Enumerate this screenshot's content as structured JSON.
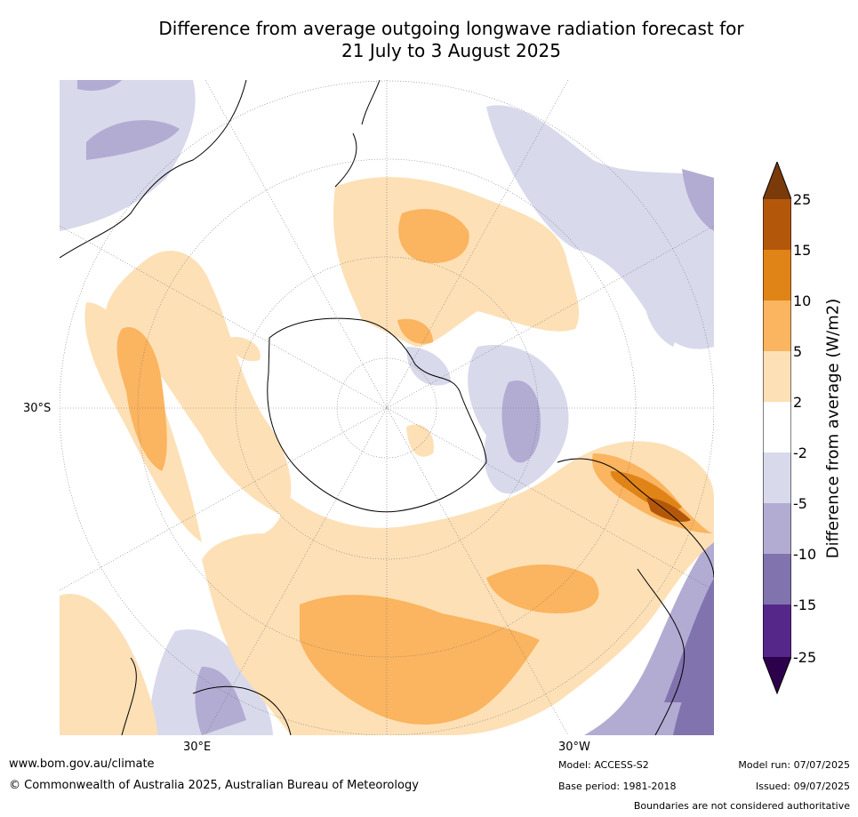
{
  "title_line1": "Difference from average outgoing longwave radiation forecast for",
  "title_line2": "21 July to 3 August 2025",
  "axis_labels": {
    "lat_30s": "30°S",
    "lon_30e": "30°E",
    "lon_30w": "30°W"
  },
  "colorbar": {
    "title": "Difference from average (W/m2)",
    "levels": [
      "25",
      "15",
      "10",
      "5",
      "2",
      "-2",
      "-5",
      "-10",
      "-15",
      "-25"
    ],
    "colors": {
      "above_25": "#7a3a0a",
      "15_25": "#b3580b",
      "10_15": "#e08417",
      "5_10": "#fbb45f",
      "2_5": "#fde0b6",
      "neutral": "#ffffff",
      "m2_m5": "#d8d9eb",
      "m5_m10": "#b2abd2",
      "m10_m15": "#8173ae",
      "m15_m25": "#542789",
      "below_m25": "#2d004b"
    }
  },
  "footer": {
    "website": "www.bom.gov.au/climate",
    "copyright": "© Commonwealth of Australia 2025, Australian Bureau of Meteorology",
    "model": "Model: ACCESS-S2",
    "base_period": "Base period: 1981-2018",
    "model_run": "Model run: 07/07/2025",
    "issued": "Issued: 09/07/2025",
    "disclaimer": "Boundaries are not considered authoritative"
  }
}
